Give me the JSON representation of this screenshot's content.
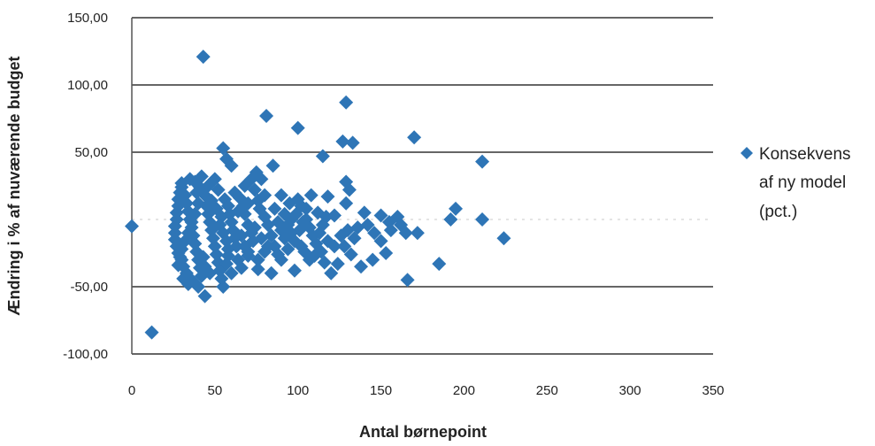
{
  "chart_data": {
    "type": "scatter",
    "title": "",
    "xlabel": "Antal børnepoint",
    "ylabel": "Ændring i % af nuværende budget",
    "xlim": [
      0,
      350
    ],
    "ylim": [
      -100,
      150
    ],
    "x_ticks": [
      "0",
      "50",
      "100",
      "150",
      "200",
      "250",
      "300",
      "350"
    ],
    "y_ticks": [
      "150,00",
      "100,00",
      "50,00",
      "",
      "-50,00",
      "-100,00"
    ],
    "grid": "horizontal",
    "legend_position": "right",
    "series": [
      {
        "name": "Konsekvens af ny model (pct.)",
        "color": "#2e75b6",
        "marker": "diamond",
        "legend_lines": [
          "Konsekvens",
          "af ny model",
          "(pct.)"
        ],
        "points": [
          [
            0,
            -5
          ],
          [
            12,
            -84
          ],
          [
            43,
            121
          ],
          [
            81,
            77
          ],
          [
            100,
            68
          ],
          [
            129,
            87
          ],
          [
            127,
            58
          ],
          [
            133,
            57
          ],
          [
            115,
            47
          ],
          [
            170,
            61
          ],
          [
            211,
            43
          ],
          [
            55,
            53
          ],
          [
            57,
            45
          ],
          [
            60,
            40
          ],
          [
            50,
            30
          ],
          [
            75,
            35
          ],
          [
            85,
            40
          ],
          [
            78,
            30
          ],
          [
            42,
            32
          ],
          [
            38,
            28
          ],
          [
            35,
            30
          ],
          [
            30,
            27
          ],
          [
            46,
            25
          ],
          [
            52,
            22
          ],
          [
            68,
            25
          ],
          [
            90,
            18
          ],
          [
            100,
            15
          ],
          [
            108,
            18
          ],
          [
            118,
            17
          ],
          [
            129,
            28
          ],
          [
            131,
            22
          ],
          [
            129,
            12
          ],
          [
            95,
            12
          ],
          [
            105,
            8
          ],
          [
            112,
            5
          ],
          [
            122,
            3
          ],
          [
            140,
            5
          ],
          [
            150,
            3
          ],
          [
            155,
            -2
          ],
          [
            160,
            2
          ],
          [
            165,
            -10
          ],
          [
            172,
            -10
          ],
          [
            195,
            8
          ],
          [
            192,
            0
          ],
          [
            211,
            0
          ],
          [
            224,
            -14
          ],
          [
            185,
            -33
          ],
          [
            166,
            -45
          ],
          [
            153,
            -25
          ],
          [
            145,
            -30
          ],
          [
            138,
            -35
          ],
          [
            124,
            -33
          ],
          [
            120,
            -40
          ],
          [
            110,
            -27
          ],
          [
            102,
            -20
          ],
          [
            98,
            -38
          ],
          [
            90,
            -30
          ],
          [
            84,
            -40
          ],
          [
            76,
            -37
          ],
          [
            70,
            -27
          ],
          [
            64,
            -30
          ],
          [
            58,
            -27
          ],
          [
            55,
            -50
          ],
          [
            44,
            -57
          ],
          [
            40,
            -50
          ],
          [
            36,
            -45
          ],
          [
            33,
            -40
          ],
          [
            31,
            -35
          ],
          [
            30,
            -30
          ],
          [
            28,
            -25
          ],
          [
            27,
            -20
          ],
          [
            26,
            -15
          ],
          [
            26,
            -10
          ],
          [
            26,
            -5
          ],
          [
            27,
            0
          ],
          [
            27,
            5
          ],
          [
            28,
            10
          ],
          [
            28,
            15
          ],
          [
            29,
            20
          ],
          [
            30,
            24
          ],
          [
            32,
            18
          ],
          [
            33,
            12
          ],
          [
            34,
            6
          ],
          [
            35,
            0
          ],
          [
            36,
            -6
          ],
          [
            37,
            -12
          ],
          [
            38,
            -18
          ],
          [
            39,
            -24
          ],
          [
            40,
            -30
          ],
          [
            41,
            -36
          ],
          [
            42,
            -42
          ],
          [
            34,
            -48
          ],
          [
            31,
            -44
          ],
          [
            45,
            10
          ],
          [
            46,
            4
          ],
          [
            47,
            -2
          ],
          [
            48,
            -8
          ],
          [
            49,
            -14
          ],
          [
            50,
            -20
          ],
          [
            51,
            -26
          ],
          [
            52,
            -32
          ],
          [
            53,
            -38
          ],
          [
            54,
            -44
          ],
          [
            47,
            -40
          ],
          [
            44,
            -35
          ],
          [
            43,
            -28
          ],
          [
            56,
            15
          ],
          [
            58,
            10
          ],
          [
            59,
            4
          ],
          [
            60,
            -2
          ],
          [
            61,
            -8
          ],
          [
            62,
            -14
          ],
          [
            63,
            -20
          ],
          [
            62,
            20
          ],
          [
            65,
            16
          ],
          [
            67,
            10
          ],
          [
            68,
            4
          ],
          [
            70,
            -4
          ],
          [
            72,
            -10
          ],
          [
            73,
            -16
          ],
          [
            66,
            -36
          ],
          [
            60,
            -40
          ],
          [
            57,
            -33
          ],
          [
            72,
            30
          ],
          [
            74,
            22
          ],
          [
            76,
            14
          ],
          [
            77,
            8
          ],
          [
            80,
            2
          ],
          [
            82,
            -4
          ],
          [
            84,
            -12
          ],
          [
            86,
            -20
          ],
          [
            88,
            -26
          ],
          [
            80,
            -24
          ],
          [
            76,
            -30
          ],
          [
            92,
            4
          ],
          [
            94,
            -4
          ],
          [
            96,
            -10
          ],
          [
            98,
            -16
          ],
          [
            101,
            -8
          ],
          [
            103,
            -2
          ],
          [
            105,
            0
          ],
          [
            107,
            -6
          ],
          [
            109,
            -12
          ],
          [
            111,
            -18
          ],
          [
            113,
            -10
          ],
          [
            115,
            -4
          ],
          [
            117,
            2
          ],
          [
            104,
            -24
          ],
          [
            107,
            -30
          ],
          [
            114,
            -24
          ],
          [
            118,
            -16
          ],
          [
            122,
            -20
          ],
          [
            126,
            -12
          ],
          [
            130,
            -8
          ],
          [
            134,
            -14
          ],
          [
            136,
            -6
          ],
          [
            142,
            -4
          ],
          [
            146,
            -10
          ],
          [
            150,
            -16
          ],
          [
            156,
            -8
          ],
          [
            162,
            -4
          ],
          [
            128,
            -20
          ],
          [
            132,
            -26
          ],
          [
            116,
            -32
          ],
          [
            96,
            0
          ],
          [
            86,
            8
          ],
          [
            80,
            18
          ],
          [
            70,
            12
          ],
          [
            64,
            6
          ],
          [
            54,
            2
          ],
          [
            44,
            18
          ],
          [
            40,
            12
          ],
          [
            38,
            4
          ],
          [
            36,
            -2
          ],
          [
            34,
            -10
          ],
          [
            32,
            -16
          ],
          [
            30,
            -22
          ],
          [
            29,
            -28
          ],
          [
            28,
            -34
          ],
          [
            39,
            20
          ],
          [
            41,
            24
          ],
          [
            48,
            14
          ],
          [
            51,
            8
          ],
          [
            53,
            -4
          ],
          [
            55,
            -10
          ],
          [
            57,
            -16
          ],
          [
            58,
            -22
          ],
          [
            66,
            -12
          ],
          [
            68,
            -20
          ],
          [
            70,
            -24
          ],
          [
            74,
            -6
          ],
          [
            78,
            -14
          ],
          [
            82,
            -20
          ],
          [
            88,
            -2
          ],
          [
            90,
            -8
          ],
          [
            92,
            -14
          ],
          [
            94,
            -22
          ],
          [
            99,
            4
          ],
          [
            102,
            10
          ]
        ]
      }
    ]
  }
}
